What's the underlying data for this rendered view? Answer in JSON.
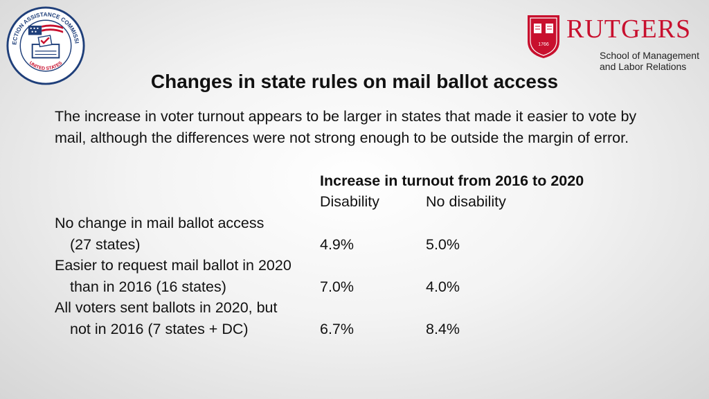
{
  "logos": {
    "eac": {
      "ring_text": "ELECTION ASSISTANCE COMMISSION",
      "bottom_text": "UNITED STATES"
    },
    "rutgers": {
      "name": "RUTGERS",
      "sub_line1": "School of Management",
      "sub_line2": "and Labor Relations",
      "shield_year": "1766",
      "brand_color": "#c8102e"
    }
  },
  "title": "Changes in state rules on mail ballot access",
  "intro": "The increase in voter turnout appears to be larger in states that made it easier to vote by mail, although the differences were not strong enough to be outside the margin of error.",
  "table": {
    "group_header": "Increase in turnout from 2016 to 2020",
    "col_disability": "Disability",
    "col_no_disability": "No disability",
    "rows": [
      {
        "line1": "No change in mail ballot access",
        "line2": "(27 states)",
        "disability": "4.9%",
        "no_disability": "5.0%"
      },
      {
        "line1": "Easier to request mail ballot in 2020",
        "line2": "than in 2016 (16 states)",
        "disability": "7.0%",
        "no_disability": "4.0%"
      },
      {
        "line1": "All voters sent ballots in 2020, but",
        "line2": "not in 2016 (7 states + DC)",
        "disability": "6.7%",
        "no_disability": "8.4%"
      }
    ]
  }
}
